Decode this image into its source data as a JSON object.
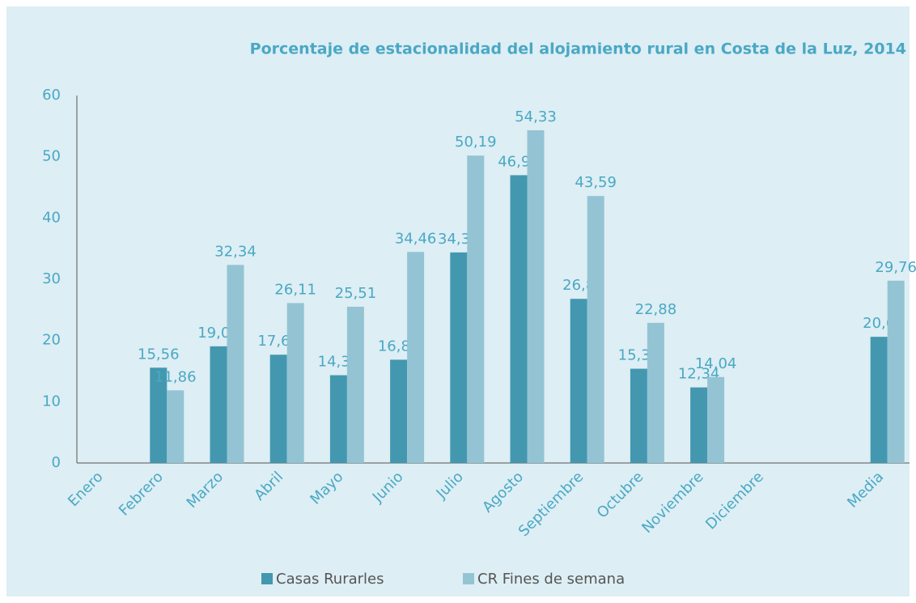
{
  "chart_data": {
    "type": "bar",
    "title": "Porcentaje de estacionalidad del alojamiento rural en Costa de la Luz, 2014",
    "categories": [
      "Enero",
      "Febrero",
      "Marzo",
      "Abril",
      "Mayo",
      "Junio",
      "Julio",
      "Agosto",
      "Septiembre",
      "Octubre",
      "Noviembre",
      "Diciembre",
      null,
      "Media"
    ],
    "series": [
      {
        "name": "Casas Rurarles",
        "color": "#4398b0",
        "values": [
          null,
          15.56,
          19.05,
          17.68,
          14.33,
          16.86,
          34.38,
          46.99,
          26.8,
          15.39,
          12.34,
          null,
          null,
          20.6
        ],
        "value_labels": [
          null,
          "15,56",
          "19,05",
          "17,68",
          "14,33",
          "16,86",
          "34,38",
          "46,99",
          "26,8",
          "15,39",
          "12,34",
          null,
          null,
          "20,6"
        ]
      },
      {
        "name": "CR Fines de semana",
        "color": "#94c4d4",
        "values": [
          null,
          11.86,
          32.34,
          26.11,
          25.51,
          34.46,
          50.19,
          54.33,
          43.59,
          22.88,
          14.04,
          null,
          null,
          29.76
        ],
        "value_labels": [
          null,
          "11,86",
          "32,34",
          "26,11",
          "25,51",
          "34,46",
          "50,19",
          "54,33",
          "43,59",
          "22,88",
          "14,04",
          null,
          null,
          "29,76"
        ]
      }
    ],
    "ylim": [
      0,
      60
    ],
    "yticks": [
      0,
      10,
      20,
      30,
      40,
      50,
      60
    ],
    "grid": false,
    "legend": "bottom"
  }
}
